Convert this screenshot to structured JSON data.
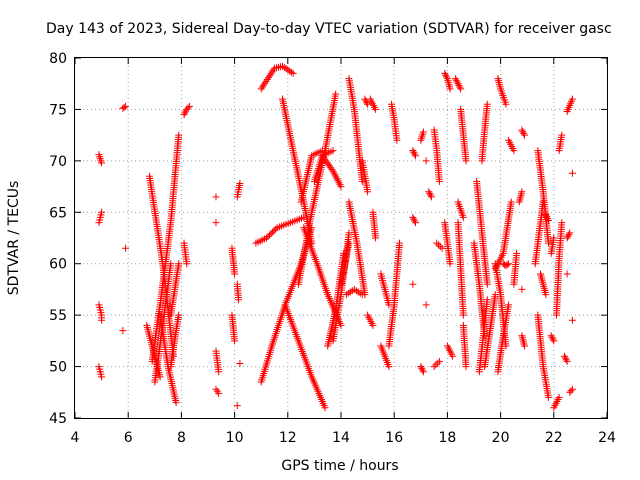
{
  "chart_data": {
    "type": "scatter",
    "title": "Day 143 of 2023, Sidereal Day-to-day VTEC variation (SDTVAR) for receiver gasc",
    "xlabel": "GPS time / hours",
    "ylabel": "SDTVAR / TECUs",
    "xlim": [
      4,
      24
    ],
    "ylim": [
      45,
      80
    ],
    "xticks": [
      4,
      6,
      8,
      10,
      12,
      14,
      16,
      18,
      20,
      22,
      24
    ],
    "yticks": [
      45,
      50,
      55,
      60,
      65,
      70,
      75,
      80
    ],
    "grid": true,
    "marker": "+",
    "color": "#ff0000",
    "tracks": [
      {
        "x": [
          4.9,
          4.95,
          5.0
        ],
        "y": [
          70.6,
          70.2,
          69.8
        ]
      },
      {
        "x": [
          4.9,
          4.95,
          5.0
        ],
        "y": [
          64.0,
          64.5,
          65.0
        ]
      },
      {
        "x": [
          4.9,
          4.95,
          5.0,
          5.0
        ],
        "y": [
          56.0,
          55.5,
          55.0,
          54.5
        ]
      },
      {
        "x": [
          4.9,
          4.95,
          5.0
        ],
        "y": [
          50.0,
          49.5,
          49.0
        ]
      },
      {
        "x": [
          5.8,
          5.9
        ],
        "y": [
          75.1,
          75.3
        ]
      },
      {
        "x": [
          5.9
        ],
        "y": [
          61.5
        ]
      },
      {
        "x": [
          5.8
        ],
        "y": [
          53.5
        ]
      },
      {
        "x": [
          6.8,
          7.3,
          7.7
        ],
        "y": [
          68.5,
          60.0,
          51.0
        ]
      },
      {
        "x": [
          6.7,
          6.95,
          7.2
        ],
        "y": [
          54.0,
          51.5,
          49.0
        ]
      },
      {
        "x": [
          7.2,
          7.5,
          7.8
        ],
        "y": [
          55.0,
          50.0,
          46.5
        ]
      },
      {
        "x": [
          6.9,
          7.2,
          7.6,
          7.9
        ],
        "y": [
          50.5,
          56.0,
          64.0,
          72.5
        ]
      },
      {
        "x": [
          7.0,
          7.3,
          7.6
        ],
        "y": [
          48.5,
          54.0,
          60.0
        ]
      },
      {
        "x": [
          7.6,
          7.9
        ],
        "y": [
          55.0,
          60.0
        ]
      },
      {
        "x": [
          7.6,
          7.8,
          7.9
        ],
        "y": [
          50.0,
          53.5,
          55.0
        ]
      },
      {
        "x": [
          8.1,
          8.2
        ],
        "y": [
          62.0,
          60.0
        ]
      },
      {
        "x": [
          8.1,
          8.2,
          8.3
        ],
        "y": [
          74.5,
          75.0,
          75.3
        ]
      },
      {
        "x": [
          9.3,
          9.4
        ],
        "y": [
          47.8,
          47.4
        ]
      },
      {
        "x": [
          9.3
        ],
        "y": [
          66.5
        ]
      },
      {
        "x": [
          9.3
        ],
        "y": [
          64.0
        ]
      },
      {
        "x": [
          9.3,
          9.4
        ],
        "y": [
          51.5,
          49.5
        ]
      },
      {
        "x": [
          9.9,
          10.0
        ],
        "y": [
          61.5,
          59.0
        ]
      },
      {
        "x": [
          9.9,
          10.0
        ],
        "y": [
          55.0,
          52.5
        ]
      },
      {
        "x": [
          10.1,
          10.15,
          10.2
        ],
        "y": [
          66.5,
          67.2,
          67.8
        ]
      },
      {
        "x": [
          10.1,
          10.15
        ],
        "y": [
          58.0,
          56.5
        ]
      },
      {
        "x": [
          10.1
        ],
        "y": [
          46.2
        ]
      },
      {
        "x": [
          10.2
        ],
        "y": [
          50.3
        ]
      },
      {
        "x": [
          10.8,
          11.2,
          11.6,
          12.1,
          12.6
        ],
        "y": [
          62.0,
          62.5,
          63.5,
          64.0,
          64.5
        ]
      },
      {
        "x": [
          11.0,
          11.4,
          11.9,
          12.5,
          12.9
        ],
        "y": [
          48.5,
          52.0,
          56.0,
          60.0,
          63.5
        ]
      },
      {
        "x": [
          11.0,
          11.5,
          11.8,
          12.2
        ],
        "y": [
          77.0,
          79.0,
          79.2,
          78.5
        ]
      },
      {
        "x": [
          11.8,
          12.2,
          12.6,
          12.9
        ],
        "y": [
          76.0,
          71.0,
          66.0,
          62.0
        ]
      },
      {
        "x": [
          11.9,
          12.4,
          12.9,
          13.4
        ],
        "y": [
          56.0,
          52.5,
          49.0,
          46.0
        ]
      },
      {
        "x": [
          12.4,
          12.9,
          13.4,
          13.8
        ],
        "y": [
          58.0,
          65.0,
          71.0,
          76.5
        ]
      },
      {
        "x": [
          12.5,
          12.9,
          13.3
        ],
        "y": [
          66.0,
          70.5,
          71.0
        ]
      },
      {
        "x": [
          12.6,
          13.1,
          13.5,
          14.0
        ],
        "y": [
          63.5,
          60.0,
          57.0,
          54.0
        ]
      },
      {
        "x": [
          13.0,
          13.3,
          13.7
        ],
        "y": [
          68.0,
          70.5,
          71.0
        ]
      },
      {
        "x": [
          13.3,
          13.7,
          14.0
        ],
        "y": [
          70.5,
          69.0,
          67.5
        ]
      },
      {
        "x": [
          13.5,
          13.8,
          14.1
        ],
        "y": [
          52.0,
          55.5,
          61.0
        ]
      },
      {
        "x": [
          13.7,
          14.0,
          14.3
        ],
        "y": [
          52.5,
          57.0,
          63.0
        ]
      },
      {
        "x": [
          14.0,
          14.3
        ],
        "y": [
          58.0,
          62.0
        ]
      },
      {
        "x": [
          14.3,
          14.5,
          14.8
        ],
        "y": [
          78.0,
          75.0,
          68.0
        ]
      },
      {
        "x": [
          14.3,
          14.6,
          14.9
        ],
        "y": [
          66.0,
          62.0,
          57.0
        ]
      },
      {
        "x": [
          14.2,
          14.5,
          14.8
        ],
        "y": [
          57.0,
          57.5,
          57.0
        ]
      },
      {
        "x": [
          14.8,
          15.0
        ],
        "y": [
          70.0,
          67.0
        ]
      },
      {
        "x": [
          14.9,
          15.0
        ],
        "y": [
          76.0,
          75.5
        ]
      },
      {
        "x": [
          15.1,
          15.3
        ],
        "y": [
          76.0,
          75.0
        ]
      },
      {
        "x": [
          15.2,
          15.3
        ],
        "y": [
          65.0,
          62.5
        ]
      },
      {
        "x": [
          15.0,
          15.2
        ],
        "y": [
          55.0,
          54.0
        ]
      },
      {
        "x": [
          15.5,
          15.8
        ],
        "y": [
          52.0,
          50.0
        ]
      },
      {
        "x": [
          15.5,
          15.8
        ],
        "y": [
          59.0,
          56.0
        ]
      },
      {
        "x": [
          15.9,
          16.0,
          16.1
        ],
        "y": [
          75.5,
          74.0,
          72.0
        ]
      },
      {
        "x": [
          15.8,
          16.0,
          16.2
        ],
        "y": [
          52.0,
          56.0,
          62.0
        ]
      },
      {
        "x": [
          16.7,
          16.8
        ],
        "y": [
          64.5,
          64.0
        ]
      },
      {
        "x": [
          16.7,
          16.8
        ],
        "y": [
          71.0,
          70.5
        ]
      },
      {
        "x": [
          16.7
        ],
        "y": [
          58.0
        ]
      },
      {
        "x": [
          17.0,
          17.1
        ],
        "y": [
          50.0,
          49.5
        ]
      },
      {
        "x": [
          17.0,
          17.1
        ],
        "y": [
          72.0,
          72.8
        ]
      },
      {
        "x": [
          17.2
        ],
        "y": [
          56.0
        ]
      },
      {
        "x": [
          17.2
        ],
        "y": [
          70.0
        ]
      },
      {
        "x": [
          17.3,
          17.4
        ],
        "y": [
          67.0,
          66.5
        ]
      },
      {
        "x": [
          17.5,
          17.7
        ],
        "y": [
          50.0,
          50.5
        ]
      },
      {
        "x": [
          17.5,
          17.6,
          17.7
        ],
        "y": [
          73.0,
          71.0,
          68.0
        ]
      },
      {
        "x": [
          17.6,
          17.8
        ],
        "y": [
          62.0,
          61.5
        ]
      },
      {
        "x": [
          17.9,
          18.0,
          18.1
        ],
        "y": [
          78.5,
          78.0,
          77.0
        ]
      },
      {
        "x": [
          17.9,
          18.1
        ],
        "y": [
          64.0,
          60.0
        ]
      },
      {
        "x": [
          18.0,
          18.2
        ],
        "y": [
          52.0,
          51.0
        ]
      },
      {
        "x": [
          18.3,
          18.4,
          18.5
        ],
        "y": [
          78.0,
          77.5,
          77.0
        ]
      },
      {
        "x": [
          18.4,
          18.6
        ],
        "y": [
          66.0,
          64.5
        ]
      },
      {
        "x": [
          18.4,
          18.5,
          18.6
        ],
        "y": [
          64.0,
          59.5,
          55.0
        ]
      },
      {
        "x": [
          18.5,
          18.7
        ],
        "y": [
          75.0,
          70.0
        ]
      },
      {
        "x": [
          18.6,
          18.7
        ],
        "y": [
          54.0,
          50.0
        ]
      },
      {
        "x": [
          19.0,
          19.2,
          19.4
        ],
        "y": [
          62.0,
          58.0,
          53.0
        ]
      },
      {
        "x": [
          19.1,
          19.3,
          19.5
        ],
        "y": [
          68.0,
          63.0,
          58.0
        ]
      },
      {
        "x": [
          19.2,
          19.35,
          19.5
        ],
        "y": [
          49.5,
          53.0,
          56.5
        ]
      },
      {
        "x": [
          19.3,
          19.4,
          19.5
        ],
        "y": [
          70.0,
          73.0,
          75.5
        ]
      },
      {
        "x": [
          19.4,
          19.6,
          19.8
        ],
        "y": [
          50.0,
          53.5,
          57.0
        ]
      },
      {
        "x": [
          19.8,
          20.0,
          20.2
        ],
        "y": [
          60.0,
          57.0,
          52.0
        ]
      },
      {
        "x": [
          19.9,
          20.0,
          20.2
        ],
        "y": [
          78.0,
          77.0,
          75.5
        ]
      },
      {
        "x": [
          19.9,
          20.1,
          20.3
        ],
        "y": [
          49.5,
          53.0,
          56.0
        ]
      },
      {
        "x": [
          19.8,
          20.1,
          20.4
        ],
        "y": [
          59.5,
          61.0,
          66.0
        ]
      },
      {
        "x": [
          20.1,
          20.2,
          20.3
        ],
        "y": [
          60.0,
          59.8,
          60.0
        ]
      },
      {
        "x": [
          20.3,
          20.5
        ],
        "y": [
          72.0,
          71.0
        ]
      },
      {
        "x": [
          20.5,
          20.6
        ],
        "y": [
          58.0,
          61.0
        ]
      },
      {
        "x": [
          20.7,
          20.8
        ],
        "y": [
          66.0,
          67.0
        ]
      },
      {
        "x": [
          20.8,
          20.9
        ],
        "y": [
          73.0,
          72.5
        ]
      },
      {
        "x": [
          20.8,
          20.9
        ],
        "y": [
          53.0,
          52.0
        ]
      },
      {
        "x": [
          20.8
        ],
        "y": [
          57.5
        ]
      },
      {
        "x": [
          21.4,
          21.6,
          21.8
        ],
        "y": [
          55.0,
          50.0,
          47.0
        ]
      },
      {
        "x": [
          21.4,
          21.6,
          21.8
        ],
        "y": [
          71.0,
          67.0,
          62.0
        ]
      },
      {
        "x": [
          21.3,
          21.6
        ],
        "y": [
          60.0,
          66.0
        ]
      },
      {
        "x": [
          21.5,
          21.7
        ],
        "y": [
          59.0,
          57.0
        ]
      },
      {
        "x": [
          21.7,
          21.8
        ],
        "y": [
          64.8,
          64.2
        ]
      },
      {
        "x": [
          21.9,
          22.0
        ],
        "y": [
          53.0,
          52.5
        ]
      },
      {
        "x": [
          21.9,
          22.0
        ],
        "y": [
          61.0,
          62.5
        ]
      },
      {
        "x": [
          22.1,
          22.2,
          22.3
        ],
        "y": [
          55.0,
          60.5,
          64.0
        ]
      },
      {
        "x": [
          22.2,
          22.3
        ],
        "y": [
          71.0,
          72.5
        ]
      },
      {
        "x": [
          22.0,
          22.2
        ],
        "y": [
          46.0,
          47.0
        ]
      },
      {
        "x": [
          22.4,
          22.5
        ],
        "y": [
          51.0,
          50.5
        ]
      },
      {
        "x": [
          22.5
        ],
        "y": [
          59.0
        ]
      },
      {
        "x": [
          22.5,
          22.6
        ],
        "y": [
          62.5,
          63.0
        ]
      },
      {
        "x": [
          22.6,
          22.7
        ],
        "y": [
          47.5,
          47.8
        ]
      },
      {
        "x": [
          22.7
        ],
        "y": [
          54.5
        ]
      },
      {
        "x": [
          22.7
        ],
        "y": [
          68.8
        ]
      },
      {
        "x": [
          22.5,
          22.7
        ],
        "y": [
          74.8,
          76.0
        ]
      }
    ]
  }
}
